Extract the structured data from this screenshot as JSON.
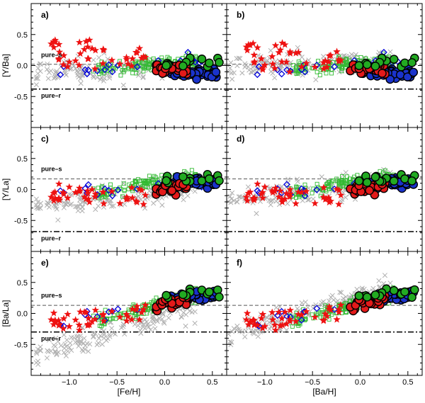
{
  "chart_data": {
    "type": "scatter",
    "rows": [
      {
        "ylabel": "[Y/Ba]",
        "ylim": [
          -1.0,
          1.0
        ],
        "yticks": [
          0.5,
          0.0,
          -0.5
        ],
        "ytick_labels": [
          "0.5",
          "0.0",
          "-0.5"
        ],
        "pure_s": {
          "label": "pure–s",
          "value": 0.02
        },
        "pure_r": {
          "label": "pure–r",
          "value": -0.38
        },
        "pure_s_text_y": 0.14,
        "pure_r_text_y": -0.52
      },
      {
        "ylabel": "[Y/La]",
        "ylim": [
          -1.0,
          1.0
        ],
        "yticks": [
          0.5,
          0.0,
          -0.5
        ],
        "ytick_labels": [
          "0.5",
          "0.0",
          "-0.5"
        ],
        "pure_s": {
          "label": "pure–s",
          "value": 0.17
        },
        "pure_r": {
          "label": "pure–r",
          "value": -0.68
        },
        "pure_s_text_y": 0.3,
        "pure_r_text_y": -0.82
      },
      {
        "ylabel": "[Ba/La]",
        "ylim": [
          -1.0,
          1.0
        ],
        "yticks": [
          0.5,
          0.0,
          -0.5
        ],
        "ytick_labels": [
          "0.5",
          "0.0",
          "-0.5"
        ],
        "pure_s": {
          "label": "pure–s",
          "value": 0.13
        },
        "pure_r": {
          "label": "pure–r",
          "value": -0.3
        },
        "pure_s_text_y": 0.26,
        "pure_r_text_y": -0.44
      }
    ],
    "columns": [
      {
        "xlabel": "[Fe/H]",
        "xlim": [
          -1.4,
          0.65
        ],
        "xticks": [
          -1.0,
          -0.5,
          0.0,
          0.5
        ],
        "xtick_labels": [
          "−1.0",
          "−0.5",
          "0.0",
          "0.5"
        ]
      },
      {
        "xlabel": "[Ba/H]",
        "xlim": [
          -1.4,
          0.65
        ],
        "xticks": [
          -1.0,
          -0.5,
          0.0,
          0.5
        ],
        "xtick_labels": [
          "−1.0",
          "−0.5",
          "0.0",
          "0.5"
        ]
      }
    ],
    "panels": [
      {
        "label": "a)",
        "row": 0,
        "col": 0
      },
      {
        "label": "b)",
        "row": 0,
        "col": 1
      },
      {
        "label": "c)",
        "row": 1,
        "col": 0
      },
      {
        "label": "d)",
        "row": 1,
        "col": 1
      },
      {
        "label": "e)",
        "row": 2,
        "col": 0
      },
      {
        "label": "f)",
        "row": 2,
        "col": 1
      }
    ],
    "series": [
      {
        "name": "gray-crosses",
        "marker": "cross",
        "color": "#b0b0b0",
        "count": 150,
        "x_range": [
          -1.35,
          0.35
        ],
        "base": [
          [
            -0.05,
            0.04
          ],
          [
            -0.1,
            0.0
          ],
          [
            -0.18,
            0.15
          ]
        ],
        "slope": [
          0.05,
          0.15,
          0.45
        ],
        "scatter": [
          0.15,
          0.17,
          0.17
        ]
      },
      {
        "name": "green-squares",
        "marker": "square",
        "color": "#33bb33",
        "count": 140,
        "x_range": [
          -0.75,
          0.35
        ],
        "base": [
          [
            0.0,
            0.0
          ],
          [
            0.05,
            0.05
          ],
          [
            0.05,
            0.05
          ]
        ],
        "slope": [
          0.1,
          0.25,
          0.4
        ],
        "scatter": [
          0.1,
          0.09,
          0.09
        ]
      },
      {
        "name": "blue-diamonds",
        "marker": "diamond",
        "color": "#0000dd",
        "count": 22,
        "x_range": [
          -1.1,
          0.4
        ],
        "base": [
          [
            0.0,
            0.0
          ],
          [
            0.02,
            0.02
          ],
          [
            0.1,
            0.1
          ]
        ],
        "slope": [
          0.1,
          0.1,
          0.3
        ],
        "scatter": [
          0.1,
          0.08,
          0.08
        ]
      },
      {
        "name": "red-stars",
        "marker": "star",
        "color": "#ee1111",
        "count": 42,
        "x_range": [
          -1.2,
          -0.2
        ],
        "base": [
          [
            0.15,
            0.1
          ],
          [
            -0.1,
            -0.1
          ],
          [
            0.0,
            0.0
          ]
        ],
        "slope": [
          -0.1,
          0.0,
          0.2
        ],
        "scatter": [
          0.2,
          0.13,
          0.13
        ]
      },
      {
        "name": "blue-circles",
        "marker": "circle",
        "color": "#1a33cc",
        "count": 60,
        "x_range": [
          0.05,
          0.55
        ],
        "base": [
          [
            -0.05,
            -0.05
          ],
          [
            0.05,
            0.05
          ],
          [
            0.15,
            0.15
          ]
        ],
        "slope": [
          -0.1,
          0.1,
          0.2
        ],
        "scatter": [
          0.07,
          0.07,
          0.07
        ]
      },
      {
        "name": "red-circles",
        "marker": "circle",
        "color": "#e31a1a",
        "count": 25,
        "x_range": [
          -0.1,
          0.25
        ],
        "base": [
          [
            -0.05,
            -0.05
          ],
          [
            0.0,
            0.0
          ],
          [
            0.1,
            0.1
          ]
        ],
        "slope": [
          0.0,
          0.1,
          0.2
        ],
        "scatter": [
          0.08,
          0.08,
          0.08
        ]
      },
      {
        "name": "green-circles",
        "marker": "circle",
        "color": "#22aa22",
        "count": 12,
        "x_range": [
          -0.05,
          0.6
        ],
        "base": [
          [
            0.0,
            0.0
          ],
          [
            0.1,
            0.1
          ],
          [
            0.2,
            0.2
          ]
        ],
        "slope": [
          0.1,
          0.1,
          0.2
        ],
        "scatter": [
          0.08,
          0.08,
          0.08
        ]
      }
    ]
  }
}
